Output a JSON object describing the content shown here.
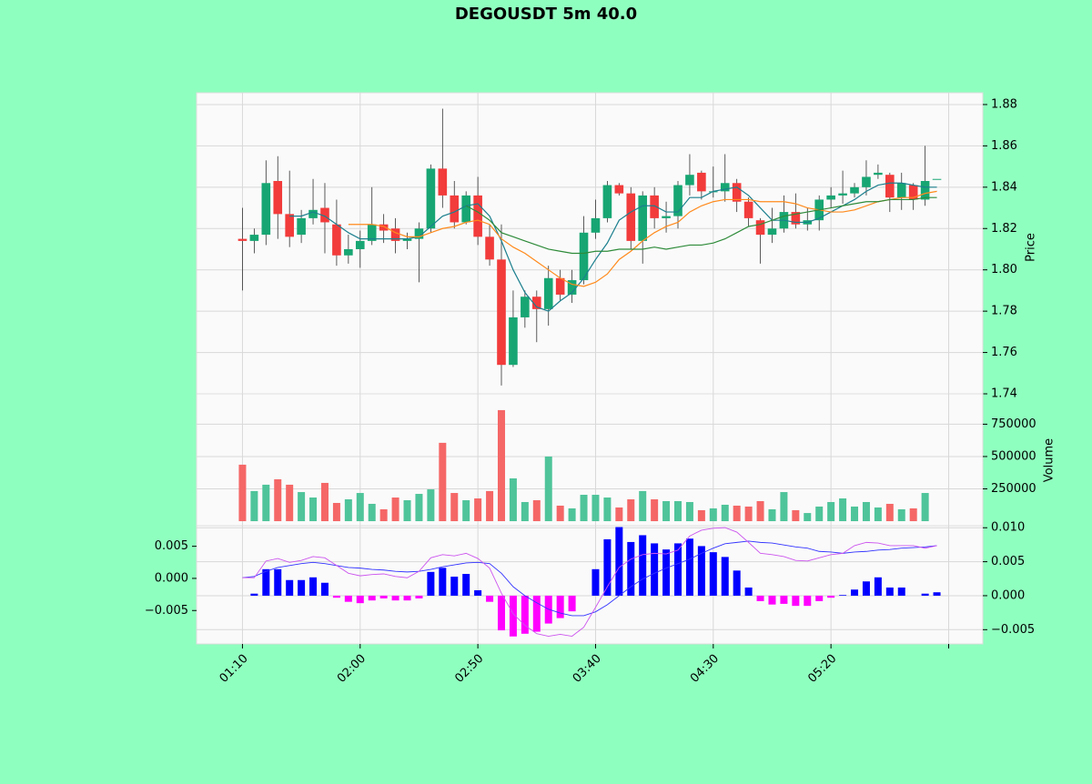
{
  "chart_data": [
    {
      "type": "candlestick",
      "title": "DEGOUSDT 5m 40.0",
      "ylabel": "Price",
      "xlim": [
        -3.9,
        62.9
      ],
      "ylim": [
        1.74,
        1.8857
      ],
      "yticks": [
        1.74,
        1.76,
        1.78,
        {
          "value": 1.8,
          "label": "1.80"
        },
        1.82,
        1.84,
        1.86,
        1.88
      ],
      "grid": true,
      "up_color": "#17a673",
      "down_color": "#f23b3b",
      "open": [
        1.815,
        1.814,
        1.817,
        1.843,
        1.827,
        1.817,
        1.825,
        1.83,
        1.822,
        1.807,
        1.81,
        1.814,
        1.822,
        1.82,
        1.814,
        1.815,
        1.82,
        1.849,
        1.836,
        1.823,
        1.836,
        1.816,
        1.805,
        1.754,
        1.777,
        1.787,
        1.781,
        1.796,
        1.788,
        1.795,
        1.818,
        1.825,
        1.841,
        1.837,
        1.814,
        1.836,
        1.825,
        1.826,
        1.841,
        1.847,
        1.838,
        1.838,
        1.842,
        1.833,
        1.824,
        1.817,
        1.82,
        1.828,
        1.822,
        1.824,
        1.834,
        1.836,
        1.837,
        1.84,
        1.846,
        1.846,
        1.835,
        1.841,
        1.834,
        1.844
      ],
      "high": [
        1.83,
        1.82,
        1.853,
        1.855,
        1.848,
        1.829,
        1.844,
        1.842,
        1.834,
        1.817,
        1.819,
        1.84,
        1.827,
        1.825,
        1.818,
        1.823,
        1.851,
        1.878,
        1.843,
        1.838,
        1.845,
        1.822,
        1.822,
        1.79,
        1.79,
        1.79,
        1.802,
        1.8,
        1.8,
        1.826,
        1.834,
        1.843,
        1.842,
        1.84,
        1.838,
        1.84,
        1.833,
        1.843,
        1.856,
        1.848,
        1.85,
        1.856,
        1.844,
        1.835,
        1.825,
        1.83,
        1.836,
        1.837,
        1.83,
        1.836,
        1.84,
        1.848,
        1.842,
        1.853,
        1.851,
        1.847,
        1.847,
        1.842,
        1.86,
        1.844
      ],
      "low": [
        1.79,
        1.808,
        1.812,
        1.815,
        1.811,
        1.813,
        1.822,
        1.808,
        1.802,
        1.803,
        1.801,
        1.812,
        1.813,
        1.808,
        1.81,
        1.794,
        1.818,
        1.83,
        1.82,
        1.822,
        1.812,
        1.802,
        1.744,
        1.753,
        1.772,
        1.765,
        1.773,
        1.785,
        1.784,
        1.793,
        1.815,
        1.823,
        1.836,
        1.81,
        1.803,
        1.82,
        1.818,
        1.82,
        1.836,
        1.834,
        1.835,
        1.833,
        1.828,
        1.821,
        1.803,
        1.813,
        1.818,
        1.82,
        1.819,
        1.819,
        1.83,
        1.832,
        1.835,
        1.836,
        1.844,
        1.828,
        1.829,
        1.829,
        1.831,
        1.844
      ],
      "close": [
        1.814,
        1.817,
        1.842,
        1.827,
        1.816,
        1.825,
        1.829,
        1.823,
        1.807,
        1.81,
        1.814,
        1.822,
        1.819,
        1.814,
        1.815,
        1.82,
        1.849,
        1.836,
        1.823,
        1.836,
        1.816,
        1.805,
        1.754,
        1.777,
        1.787,
        1.781,
        1.796,
        1.788,
        1.795,
        1.818,
        1.825,
        1.841,
        1.837,
        1.814,
        1.836,
        1.825,
        1.826,
        1.841,
        1.846,
        1.838,
        1.838,
        1.842,
        1.833,
        1.825,
        1.817,
        1.82,
        1.828,
        1.822,
        1.824,
        1.834,
        1.836,
        1.837,
        1.84,
        1.845,
        1.847,
        1.835,
        1.842,
        1.834,
        1.843,
        1.844
      ],
      "moving_averages": [
        {
          "color": "#1b7f8e",
          "values": [
            null,
            null,
            null,
            null,
            1.826,
            1.826,
            1.828,
            1.826,
            1.822,
            1.818,
            1.815,
            1.815,
            1.815,
            1.815,
            1.815,
            1.816,
            1.821,
            1.826,
            1.828,
            1.831,
            1.832,
            1.826,
            1.814,
            1.8,
            1.789,
            1.782,
            1.78,
            1.785,
            1.789,
            1.796,
            1.805,
            1.813,
            1.824,
            1.828,
            1.831,
            1.831,
            1.828,
            1.828,
            1.835,
            1.835,
            1.838,
            1.839,
            1.84,
            1.836,
            1.83,
            1.824,
            1.824,
            1.823,
            1.823,
            1.825,
            1.828,
            1.831,
            1.834,
            1.838,
            1.841,
            1.842,
            1.842,
            1.841,
            1.84,
            1.84
          ]
        },
        {
          "color": "#ff8a1c",
          "values": [
            null,
            null,
            null,
            null,
            null,
            null,
            null,
            null,
            null,
            1.822,
            1.822,
            1.822,
            1.821,
            1.818,
            1.816,
            1.816,
            1.818,
            1.82,
            1.821,
            1.823,
            1.824,
            1.822,
            1.815,
            1.811,
            1.808,
            1.804,
            1.8,
            1.796,
            1.793,
            1.792,
            1.794,
            1.798,
            1.805,
            1.809,
            1.814,
            1.818,
            1.821,
            1.823,
            1.828,
            1.831,
            1.833,
            1.834,
            1.834,
            1.834,
            1.833,
            1.833,
            1.833,
            1.832,
            1.83,
            1.829,
            1.828,
            1.828,
            1.829,
            1.831,
            1.833,
            1.834,
            1.835,
            1.835,
            1.837,
            1.838
          ]
        },
        {
          "color": "#2e8b3a",
          "values": [
            null,
            null,
            null,
            null,
            null,
            null,
            null,
            null,
            null,
            null,
            null,
            null,
            null,
            null,
            null,
            null,
            null,
            null,
            null,
            1.831,
            1.828,
            1.824,
            1.818,
            1.816,
            1.814,
            1.812,
            1.81,
            1.809,
            1.808,
            1.808,
            1.809,
            1.809,
            1.81,
            1.81,
            1.81,
            1.811,
            1.81,
            1.811,
            1.812,
            1.812,
            1.813,
            1.815,
            1.818,
            1.821,
            1.822,
            1.824,
            1.826,
            1.827,
            1.828,
            1.829,
            1.83,
            1.831,
            1.832,
            1.833,
            1.833,
            1.834,
            1.834,
            1.834,
            1.835,
            1.835
          ]
        }
      ]
    },
    {
      "type": "volume",
      "ylabel": "Volume",
      "xlim": [
        -3.9,
        62.9
      ],
      "ylim": [
        -35000,
        985000
      ],
      "yticks": [
        250000,
        500000,
        750000
      ],
      "grid": true,
      "up_color": "#4fc49a",
      "down_color": "#f56767",
      "values": [
        437000,
        233000,
        282000,
        324000,
        282000,
        225000,
        183000,
        296000,
        141000,
        169000,
        218000,
        134000,
        92000,
        183000,
        162000,
        211000,
        246000,
        606000,
        218000,
        162000,
        176000,
        233000,
        859000,
        331000,
        148000,
        162000,
        500000,
        120000,
        99000,
        204000,
        204000,
        183000,
        106000,
        169000,
        233000,
        169000,
        155000,
        155000,
        148000,
        85000,
        99000,
        127000,
        120000,
        113000,
        155000,
        92000,
        225000,
        85000,
        63000,
        113000,
        148000,
        176000,
        113000,
        148000,
        106000,
        134000,
        92000,
        99000,
        218000,
        0
      ]
    },
    {
      "type": "macd",
      "xlim": [
        -3.9,
        62.9
      ],
      "ylim": [
        -0.0071,
        0.0103
      ],
      "yticks": [
        {
          "value": -0.005,
          "label": "−0.005"
        },
        {
          "value": 0,
          "label": "0.000"
        },
        {
          "value": 0.005,
          "label": "0.005"
        },
        {
          "value": 0.01,
          "label": "0.010"
        }
      ],
      "y2lim": [
        -0.0102,
        0.0082
      ],
      "y2ticks": [
        {
          "value": -0.005,
          "label": "−0.005"
        },
        {
          "value": 0,
          "label": "0.000"
        },
        {
          "value": 0.005,
          "label": "0.005"
        }
      ],
      "xticks": [
        {
          "value": 0,
          "label": "01:10"
        },
        {
          "value": 10,
          "label": "02:00"
        },
        {
          "value": 20,
          "label": "02:50"
        },
        {
          "value": 30,
          "label": "03:40"
        },
        {
          "value": 40,
          "label": "04:30"
        },
        {
          "value": 50,
          "label": "05:20"
        },
        {
          "value": 60,
          "label": null
        }
      ],
      "grid": true,
      "pos_color": "#0000ff",
      "neg_color": "#ff00ff",
      "values": [
        0,
        0.0003,
        0.0039,
        0.0039,
        0.0023,
        0.0023,
        0.0027,
        0.0019,
        -0.0003,
        -0.0009,
        -0.0011,
        -0.0007,
        -0.0004,
        -0.0007,
        -0.0007,
        -0.0004,
        0.0035,
        0.0041,
        0.0028,
        0.0032,
        0.0008,
        -0.0009,
        -0.0051,
        -0.006,
        -0.0056,
        -0.0053,
        -0.0041,
        -0.0033,
        -0.0023,
        0,
        0.0039,
        0.0083,
        0.0101,
        0.0079,
        0.0089,
        0.0077,
        0.0068,
        0.0077,
        0.0084,
        0.0073,
        0.0064,
        0.0057,
        0.0037,
        0.0012,
        -0.0008,
        -0.0013,
        -0.0012,
        -0.0015,
        -0.0015,
        -0.0008,
        -0.0003,
        0.0001,
        0.0009,
        0.0021,
        0.0027,
        0.0012,
        0.0012,
        0,
        0.0003,
        0.0005
      ],
      "series": [
        {
          "color": "#3333ff",
          "axis": "y2",
          "values": [
            0.0001,
            0.0003,
            0.0011,
            0.0017,
            0.002,
            0.0023,
            0.0025,
            0.0023,
            0.002,
            0.0017,
            0.0016,
            0.0014,
            0.0013,
            0.0011,
            0.001,
            0.0011,
            0.0014,
            0.0018,
            0.0021,
            0.0024,
            0.0025,
            0.0023,
            0.0008,
            -0.0013,
            -0.0027,
            -0.0038,
            -0.0048,
            -0.0054,
            -0.0058,
            -0.0058,
            -0.0052,
            -0.0041,
            -0.0027,
            -0.0013,
            -0.0001,
            0.0008,
            0.0016,
            0.0023,
            0.003,
            0.0039,
            0.0047,
            0.0054,
            0.0056,
            0.0058,
            0.0056,
            0.0055,
            0.0052,
            0.0049,
            0.0047,
            0.0042,
            0.0041,
            0.0039,
            0.0041,
            0.0042,
            0.0044,
            0.0045,
            0.0047,
            0.0048,
            0.0049,
            0.0051
          ]
        },
        {
          "color": "#cc55ee",
          "axis": "y2",
          "values": [
            0.0001,
            0.0001,
            0.0027,
            0.0031,
            0.0025,
            0.0028,
            0.0034,
            0.0032,
            0.002,
            0.0008,
            0.0004,
            0.0006,
            0.0007,
            0.0003,
            0.0001,
            0.0011,
            0.0032,
            0.0037,
            0.0035,
            0.0039,
            0.0031,
            0.0016,
            -0.0023,
            -0.0055,
            -0.0073,
            -0.0086,
            -0.009,
            -0.0087,
            -0.009,
            -0.0076,
            -0.0045,
            -0.0013,
            0.0017,
            0.003,
            0.0037,
            0.0039,
            0.0038,
            0.0044,
            0.0066,
            0.0075,
            0.0078,
            0.0079,
            0.0072,
            0.0056,
            0.0039,
            0.0037,
            0.0034,
            0.0028,
            0.0027,
            0.0032,
            0.0037,
            0.0039,
            0.0051,
            0.0056,
            0.0055,
            0.0051,
            0.0051,
            0.0051,
            0.0047,
            0.0051
          ]
        }
      ]
    }
  ]
}
